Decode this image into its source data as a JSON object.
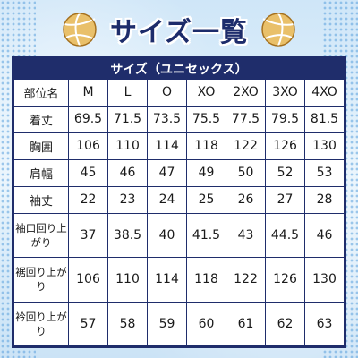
{
  "title": "サイズ一覧",
  "table": {
    "caption": "サイズ（ユニセックス）",
    "header_label": "部位名",
    "sizes": [
      "M",
      "L",
      "O",
      "XO",
      "2XO",
      "3XO",
      "4XO"
    ],
    "rows": [
      {
        "label": "着丈",
        "values": [
          "69.5",
          "71.5",
          "73.5",
          "75.5",
          "77.5",
          "79.5",
          "81.5"
        ]
      },
      {
        "label": "胸囲",
        "values": [
          "106",
          "110",
          "114",
          "118",
          "122",
          "126",
          "130"
        ]
      },
      {
        "label": "肩幅",
        "values": [
          "45",
          "46",
          "47",
          "49",
          "50",
          "52",
          "53"
        ]
      },
      {
        "label": "袖丈",
        "values": [
          "22",
          "23",
          "24",
          "25",
          "26",
          "27",
          "28"
        ]
      },
      {
        "label": "袖口回り上がり",
        "values": [
          "37",
          "38.5",
          "40",
          "41.5",
          "43",
          "44.5",
          "46"
        ]
      },
      {
        "label": "裾回り上がり",
        "values": [
          "106",
          "110",
          "114",
          "118",
          "122",
          "126",
          "130"
        ]
      },
      {
        "label": "衿回り上がり",
        "values": [
          "57",
          "58",
          "59",
          "60",
          "61",
          "62",
          "63"
        ]
      }
    ]
  },
  "icons": {
    "left": "volleyball-icon",
    "right": "volleyball-icon"
  },
  "colors": {
    "navy": "#1f2d6b",
    "ball_gold": "#d9a441"
  }
}
